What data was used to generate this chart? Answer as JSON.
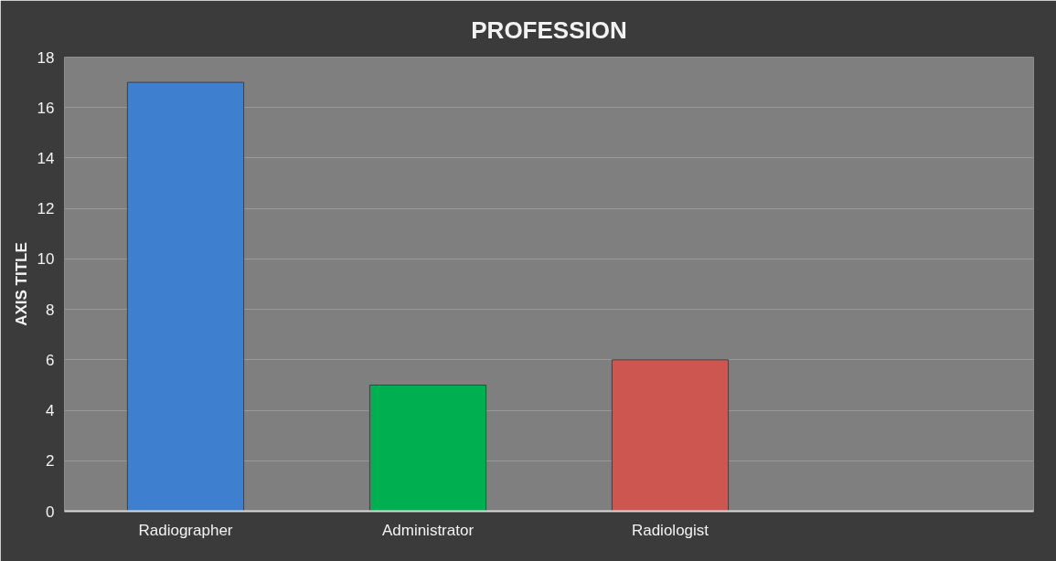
{
  "chart_data": {
    "type": "bar",
    "title": "PROFESSION",
    "ylabel": "AXIS TITLE",
    "categories": [
      "Radiographer",
      "Administrator",
      "Radiologist",
      null
    ],
    "values": [
      17,
      5,
      6,
      null
    ],
    "colors": [
      "#3f7fd0",
      "#00b050",
      "#cd5651",
      "#808080"
    ],
    "ylim": [
      0,
      18
    ],
    "yticks": [
      0,
      2,
      4,
      6,
      8,
      10,
      12,
      14,
      16,
      18
    ],
    "grid": "y"
  }
}
